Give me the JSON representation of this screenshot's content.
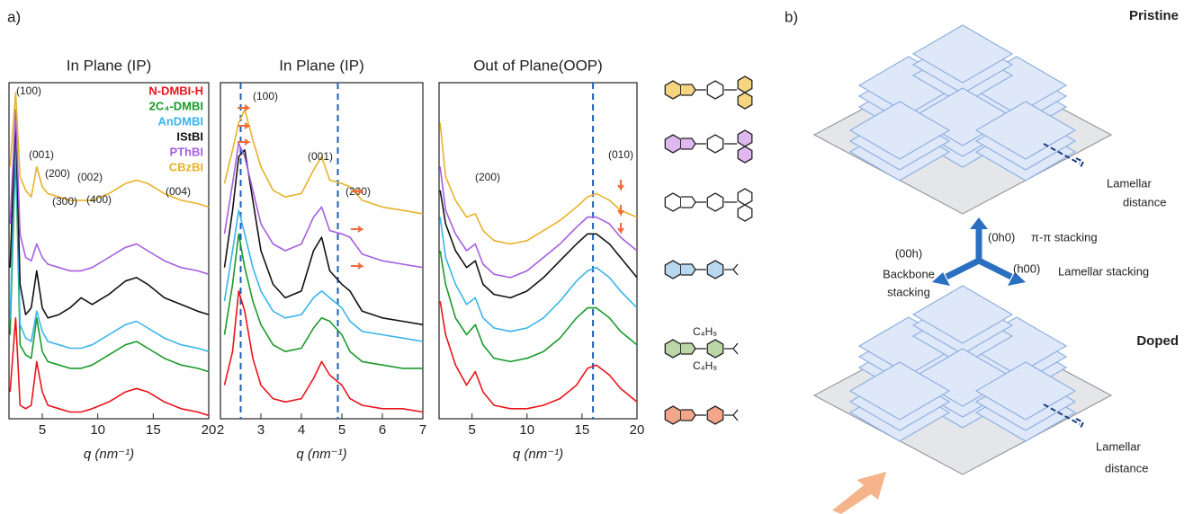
{
  "panel_labels": [
    "a)",
    "b)"
  ],
  "chart_data": [
    {
      "type": "line",
      "title": "In Plane (IP)",
      "x_label": "q (nm⁻¹)",
      "xlim": [
        2,
        20
      ],
      "xticks": [
        5,
        10,
        15,
        20
      ],
      "ylim": [
        0,
        100
      ],
      "legend": "upper right",
      "x": [
        2.1,
        2.6,
        3.0,
        3.5,
        4.0,
        4.5,
        5.0,
        5.5,
        6.5,
        7.5,
        8.5,
        9.5,
        11,
        12.5,
        13.5,
        14.5,
        16,
        17.5,
        19,
        20
      ],
      "annotations": [
        "(100)",
        "(001)",
        "(200)",
        "(300)",
        "(002)",
        "(400)",
        "(004)"
      ],
      "series": [
        {
          "name": "N-DMBI-H",
          "color": "#e8141b",
          "values": [
            8,
            30,
            4,
            3,
            4,
            17,
            8,
            4,
            3,
            2,
            2,
            3,
            5,
            8,
            9,
            8,
            5,
            3,
            2,
            1
          ]
        },
        {
          "name": "2C₄-DMBI",
          "color": "#1a9a2a",
          "values": [
            25,
            80,
            22,
            19,
            18,
            30,
            20,
            17,
            16,
            15,
            15,
            16,
            19,
            22,
            23,
            21,
            18,
            16,
            15,
            14
          ]
        },
        {
          "name": "AnDMBI",
          "color": "#3ab4ec",
          "values": [
            30,
            85,
            28,
            24,
            23,
            32,
            26,
            23,
            22,
            21,
            21,
            22,
            25,
            28,
            29,
            27,
            24,
            22,
            21,
            20
          ]
        },
        {
          "name": "IStBI",
          "color": "#111111",
          "values": [
            45,
            90,
            40,
            31,
            33,
            44,
            33,
            30,
            31,
            33,
            36,
            34,
            37,
            41,
            42,
            40,
            36,
            34,
            32,
            31
          ]
        },
        {
          "name": "PThBI",
          "color": "#a55ee0",
          "values": [
            58,
            92,
            55,
            48,
            47,
            52,
            48,
            46,
            45,
            44,
            44,
            45,
            48,
            51,
            52,
            50,
            47,
            45,
            44,
            43
          ]
        },
        {
          "name": "CBzBI",
          "color": "#e8b22a",
          "values": [
            75,
            97,
            72,
            68,
            66,
            75,
            69,
            67,
            66,
            65,
            65,
            65,
            67,
            70,
            71,
            70,
            67,
            65,
            64,
            63
          ]
        }
      ]
    },
    {
      "type": "line",
      "title": "In Plane (IP)",
      "x_label": "q (nm⁻¹)",
      "xlim": [
        2,
        7
      ],
      "xticks": [
        2,
        3,
        4,
        5,
        6,
        7
      ],
      "ylim": [
        0,
        100
      ],
      "vlines": [
        2.5,
        4.9
      ],
      "x": [
        2.1,
        2.3,
        2.45,
        2.6,
        2.8,
        3.0,
        3.3,
        3.6,
        4.0,
        4.3,
        4.5,
        4.7,
        5.0,
        5.2,
        5.5,
        6.0,
        6.5,
        7.0
      ],
      "annotations": [
        "(100)",
        "(001)",
        "(200)"
      ],
      "series": [
        {
          "color": "#e8141b",
          "values": [
            10,
            20,
            38,
            32,
            18,
            10,
            6,
            5,
            6,
            12,
            17,
            13,
            10,
            6,
            4,
            3,
            3,
            2
          ]
        },
        {
          "color": "#1a9a2a",
          "values": [
            25,
            40,
            55,
            45,
            35,
            28,
            22,
            20,
            21,
            27,
            30,
            29,
            25,
            20,
            17,
            16,
            15,
            15
          ]
        },
        {
          "color": "#3ab4ec",
          "values": [
            35,
            50,
            62,
            55,
            45,
            38,
            32,
            30,
            31,
            36,
            38,
            36,
            33,
            29,
            26,
            25,
            24,
            23
          ]
        },
        {
          "color": "#111111",
          "values": [
            45,
            62,
            78,
            80,
            65,
            50,
            40,
            36,
            38,
            50,
            54,
            44,
            40,
            38,
            32,
            30,
            29,
            28
          ]
        },
        {
          "color": "#a55ee0",
          "values": [
            55,
            70,
            82,
            78,
            68,
            58,
            52,
            50,
            52,
            60,
            63,
            56,
            55,
            54,
            49,
            47,
            46,
            45
          ]
        },
        {
          "color": "#e8b22a",
          "values": [
            70,
            80,
            88,
            92,
            83,
            75,
            68,
            66,
            67,
            74,
            78,
            71,
            70,
            69,
            65,
            63,
            62,
            61
          ]
        }
      ]
    },
    {
      "type": "line",
      "title": "Out of Plane(OOP)",
      "x_label": "q (nm⁻¹)",
      "xlim": [
        2,
        20
      ],
      "xticks": [
        5,
        10,
        15,
        20
      ],
      "ylim": [
        0,
        100
      ],
      "vlines": [
        16
      ],
      "x": [
        2.1,
        2.6,
        3.5,
        4.5,
        5.3,
        6,
        7,
        8.5,
        10,
        11.5,
        13,
        14.5,
        15.5,
        16.3,
        17.5,
        18.5,
        20
      ],
      "annotations": [
        "(200)",
        "(010)"
      ],
      "series": [
        {
          "color": "#e8141b",
          "values": [
            35,
            25,
            16,
            10,
            14,
            8,
            4,
            3,
            3,
            4,
            6,
            10,
            15,
            16,
            13,
            9,
            5
          ]
        },
        {
          "color": "#1a9a2a",
          "values": [
            50,
            40,
            30,
            25,
            28,
            22,
            18,
            17,
            18,
            20,
            24,
            30,
            33,
            33,
            30,
            26,
            22
          ]
        },
        {
          "color": "#3ab4ec",
          "values": [
            60,
            48,
            40,
            34,
            36,
            30,
            27,
            26,
            27,
            30,
            35,
            41,
            44,
            45,
            42,
            38,
            33
          ]
        },
        {
          "color": "#111111",
          "values": [
            68,
            58,
            50,
            45,
            47,
            40,
            37,
            36,
            38,
            42,
            47,
            52,
            55,
            55,
            52,
            48,
            42
          ]
        },
        {
          "color": "#a55ee0",
          "values": [
            75,
            62,
            55,
            50,
            52,
            46,
            43,
            42,
            44,
            48,
            52,
            57,
            60,
            60,
            58,
            54,
            50
          ]
        },
        {
          "color": "#e8b22a",
          "values": [
            88,
            72,
            65,
            60,
            61,
            56,
            53,
            52,
            53,
            56,
            59,
            63,
            66,
            67,
            65,
            62,
            60
          ]
        }
      ]
    }
  ],
  "structures": {
    "labels": [
      "C₄H₉",
      "C₄H₉"
    ]
  },
  "schematic": {
    "pristine": "Pristine",
    "doped": "Doped",
    "lamellar_distance_top": [
      "Lamellar",
      "distance"
    ],
    "lamellar_distance_bottom": [
      "Lamellar",
      "distance"
    ],
    "axis_0h0": "(0h0)",
    "pi_stacking": "π-π stacking",
    "axis_00h": "(00h)",
    "backbone": [
      "Backbone",
      "stacking"
    ],
    "axis_h00": "(h00)",
    "lamellar_stacking": "Lamellar stacking"
  }
}
